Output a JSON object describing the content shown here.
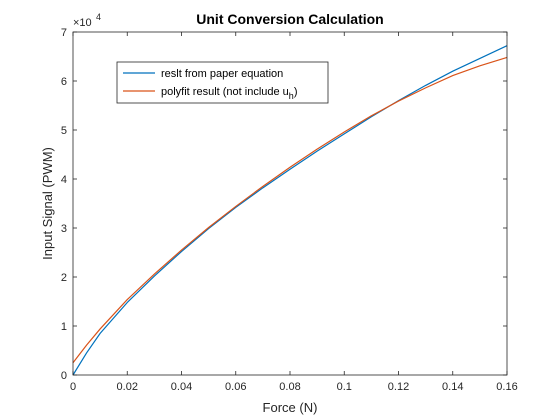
{
  "chart_data": {
    "type": "line",
    "title": "Unit Conversion Calculation",
    "xlabel": "Force (N)",
    "ylabel": "Input Signal (PWM)",
    "xlim": [
      0,
      0.16
    ],
    "ylim": [
      0,
      7
    ],
    "y_exponent_label": "×10",
    "y_exponent_power": "4",
    "xticks": [
      0,
      0.02,
      0.04,
      0.06,
      0.08,
      0.1,
      0.12,
      0.14,
      0.16
    ],
    "xtick_labels": [
      "0",
      "0.02",
      "0.04",
      "0.06",
      "0.08",
      "0.1",
      "0.12",
      "0.14",
      "0.16"
    ],
    "yticks": [
      0,
      1,
      2,
      3,
      4,
      5,
      6,
      7
    ],
    "ytick_labels": [
      "0",
      "1",
      "2",
      "3",
      "4",
      "5",
      "6",
      "7"
    ],
    "grid": false,
    "legend_position": "top-left",
    "series": [
      {
        "name": "reslt from paper equation",
        "color": "#0072BD",
        "x": [
          0,
          0.005,
          0.01,
          0.02,
          0.03,
          0.04,
          0.05,
          0.06,
          0.07,
          0.08,
          0.09,
          0.1,
          0.11,
          0.12,
          0.13,
          0.14,
          0.15,
          0.16
        ],
        "y": [
          0.0,
          0.45,
          0.85,
          1.48,
          2.02,
          2.52,
          2.99,
          3.42,
          3.82,
          4.2,
          4.57,
          4.92,
          5.27,
          5.6,
          5.91,
          6.2,
          6.46,
          6.72
        ]
      },
      {
        "name": "polyfit result (not include u",
        "name_subscript": "h",
        "name_suffix": ")",
        "color": "#D95319",
        "x": [
          0,
          0.005,
          0.01,
          0.02,
          0.03,
          0.04,
          0.05,
          0.06,
          0.07,
          0.08,
          0.09,
          0.1,
          0.11,
          0.12,
          0.13,
          0.14,
          0.15,
          0.16
        ],
        "y": [
          0.25,
          0.61,
          0.94,
          1.54,
          2.06,
          2.55,
          3.01,
          3.44,
          3.85,
          4.24,
          4.61,
          4.96,
          5.29,
          5.59,
          5.86,
          6.11,
          6.31,
          6.48
        ]
      }
    ]
  }
}
